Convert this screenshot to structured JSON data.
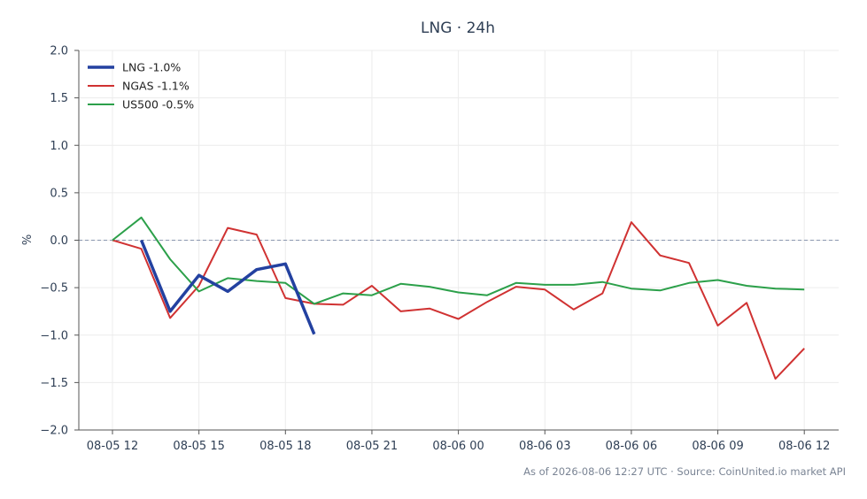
{
  "chart_data": {
    "type": "line",
    "title": "LNG · 24h",
    "ylabel": "%",
    "xlabel": "",
    "ylim": [
      -2.0,
      2.0
    ],
    "yticks": [
      2.0,
      1.5,
      1.0,
      0.5,
      0.0,
      -0.5,
      -1.0,
      -1.5,
      -2.0
    ],
    "ytick_labels": [
      "2.0",
      "1.5",
      "1.0",
      "0.5",
      "0.0",
      "−0.5",
      "−1.0",
      "−1.5",
      "−2.0"
    ],
    "xlim": [
      0,
      24.2
    ],
    "xticks": [
      0,
      3,
      6,
      9,
      12,
      15,
      18,
      21,
      24
    ],
    "xtick_labels": [
      "08-05 12",
      "08-05 15",
      "08-05 18",
      "08-05 21",
      "08-06 00",
      "08-06 03",
      "08-06 06",
      "08-06 09",
      "08-06 12"
    ],
    "grid": true,
    "zero_line": true,
    "legend_position": "top-left",
    "series": [
      {
        "name": "LNG -1.0%",
        "color": "#2341a0",
        "width": 3.5,
        "x": [
          1,
          2,
          3,
          4,
          5,
          6,
          7
        ],
        "y": [
          0.0,
          -0.75,
          -0.37,
          -0.54,
          -0.31,
          -0.25,
          -0.99
        ]
      },
      {
        "name": "NGAS -1.1%",
        "color": "#d03232",
        "width": 2,
        "x": [
          0,
          1,
          2,
          3,
          4,
          5,
          6,
          7,
          8,
          9,
          10,
          11,
          12,
          13,
          14,
          15,
          16,
          17,
          18,
          19,
          20,
          21,
          22,
          23,
          24
        ],
        "y": [
          0.0,
          -0.09,
          -0.82,
          -0.48,
          0.13,
          0.06,
          -0.61,
          -0.67,
          -0.68,
          -0.48,
          -0.75,
          -0.72,
          -0.83,
          -0.65,
          -0.49,
          -0.52,
          -0.73,
          -0.56,
          0.19,
          -0.16,
          -0.24,
          -0.9,
          -0.66,
          -1.46,
          -1.14
        ]
      },
      {
        "name": "US500 -0.5%",
        "color": "#2ca04a",
        "width": 2,
        "x": [
          0,
          1,
          2,
          3,
          4,
          5,
          6,
          7,
          8,
          9,
          10,
          11,
          12,
          13,
          14,
          15,
          16,
          17,
          18,
          19,
          20,
          21,
          22,
          23,
          24
        ],
        "y": [
          0.0,
          0.24,
          -0.2,
          -0.54,
          -0.4,
          -0.43,
          -0.45,
          -0.67,
          -0.56,
          -0.58,
          -0.46,
          -0.49,
          -0.55,
          -0.58,
          -0.45,
          -0.47,
          -0.47,
          -0.44,
          -0.51,
          -0.53,
          -0.45,
          -0.42,
          -0.48,
          -0.51,
          -0.52
        ]
      }
    ]
  },
  "footer": {
    "text": "As of 2026-08-06 12:27 UTC · Source: CoinUnited.io market API"
  }
}
